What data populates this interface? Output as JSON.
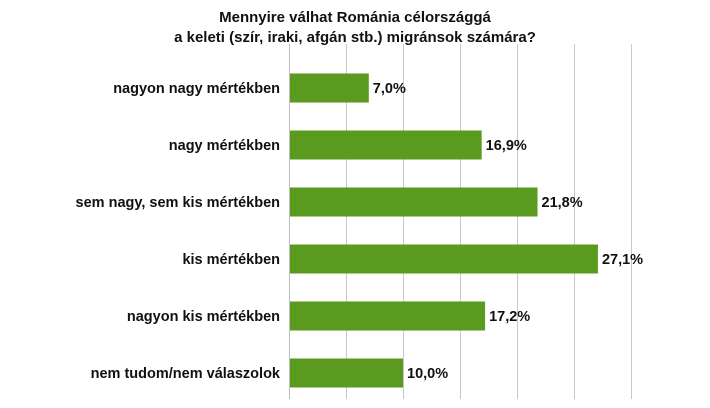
{
  "chart_data": {
    "type": "bar",
    "orientation": "horizontal",
    "title": "Mennyire válhat Románia célországgá a keleti (szír, iraki, afgán stb.) migránsok számára?",
    "title_lines": [
      "Mennyire válhat Románia célországgá",
      "a keleti (szír, iraki, afgán stb.) migránsok számára?"
    ],
    "categories": [
      "nagyon nagy mértékben",
      "nagy mértékben",
      "sem nagy, sem kis mértékben",
      "kis mértékben",
      "nagyon kis mértékben",
      "nem tudom/nem válaszolok"
    ],
    "values": [
      7.0,
      16.9,
      21.8,
      27.1,
      17.2,
      10.0
    ],
    "value_labels": [
      "7,0%",
      "16,9%",
      "21,8%",
      "27,1%",
      "17,2%",
      "10,0%"
    ],
    "xlim": [
      0,
      30
    ],
    "grid": true,
    "bar_color": "#5a9a1f",
    "grid_color": "#c8c8c8"
  }
}
